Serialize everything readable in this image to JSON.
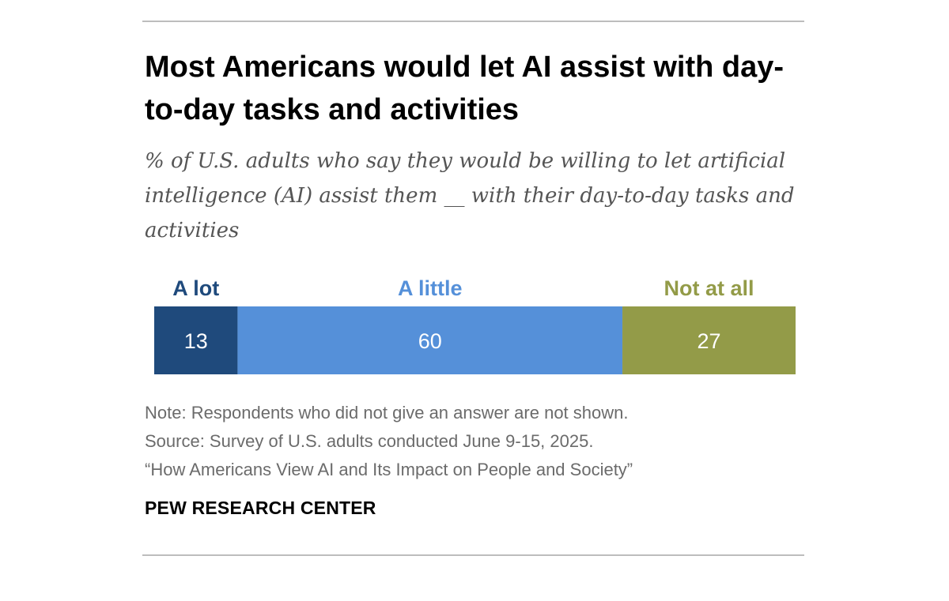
{
  "title": "Most Americans would let AI assist with day-to-day tasks and activities",
  "subtitle": "% of U.S. adults who say they would be willing to let artificial intelligence (AI) assist them __ with their day-to-day tasks and activities",
  "note": "Note: Respondents who did not give an answer are not shown.",
  "source": "Source: Survey of U.S. adults conducted June 9-15, 2025.",
  "report": "“How Americans View AI and Its Impact on People and Society”",
  "brand": "PEW RESEARCH CENTER",
  "chart_data": {
    "type": "bar",
    "orientation": "horizontal-stacked",
    "categories": [
      "A lot",
      "A little",
      "Not at all"
    ],
    "values": [
      13,
      60,
      27
    ],
    "value_labels": [
      "13",
      "60",
      "27"
    ],
    "colors": [
      "#1f4a7c",
      "#5590d9",
      "#939b48"
    ],
    "xlim": [
      0,
      100
    ],
    "legend": "top",
    "grid": false
  }
}
